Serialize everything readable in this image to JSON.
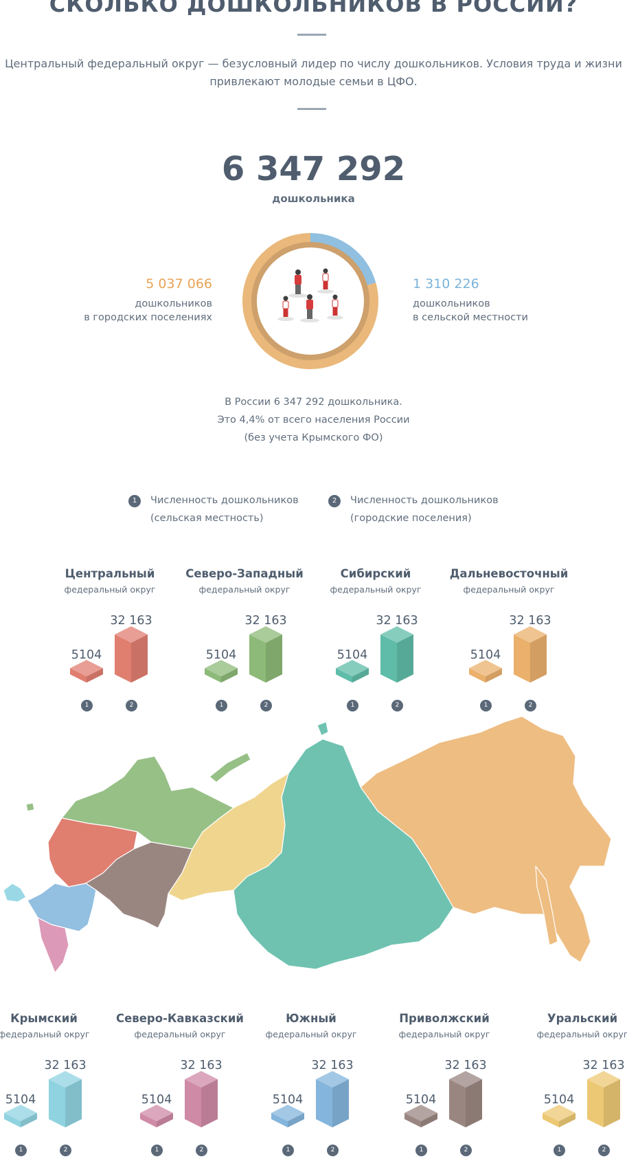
{
  "header": {
    "title": "СКОЛЬКО ДОШКОЛЬНИКОВ В РОССИИ?",
    "subtitle_line1": "Центральный федеральный округ — безусловный лидер по числу дошкольников. Условия труда и жизни",
    "subtitle_line2": "привлекают молодые семьи в ЦФО."
  },
  "summary": {
    "total": "6 347 292",
    "total_label": "дошкольника",
    "urban_value": "5 037 066",
    "urban_label_1": "дошкольников",
    "urban_label_2": "в городских поселениях",
    "rural_value": "1 310 226",
    "rural_label_1": "дошкольников",
    "rural_label_2": "в сельской местности",
    "note_1": "В России 6 347 292 дошкольника.",
    "note_2": "Это 4,4% от всего населения России",
    "note_3": "(без учета Крымского ФО)"
  },
  "legend": [
    {
      "num": "1",
      "line1": "Численность дошкольников",
      "line2": "(сельская местность)"
    },
    {
      "num": "2",
      "line1": "Численность дошкольников",
      "line2": "(городские поселения)"
    }
  ],
  "colors": {
    "urban": "#e9b87a",
    "rural": "#90bfe0",
    "inner_ring": "#cda06c"
  },
  "chart_data": [
    {
      "type": "pie",
      "title": "6 347 292",
      "categories": [
        "в городских поселениях",
        "в сельской местности"
      ],
      "values": [
        5037066,
        1310226
      ]
    },
    {
      "type": "bar",
      "categories": [
        "Центральный",
        "Северо-Западный",
        "Сибирский",
        "Дальневосточный",
        "Крымский",
        "Северо-Кавказский",
        "Южный",
        "Приволжский",
        "Уральский"
      ],
      "series": [
        {
          "name": "Численность дошкольников (сельская местность)",
          "values": [
            5104,
            5104,
            5104,
            5104,
            5104,
            5104,
            5104,
            5104,
            5104
          ]
        },
        {
          "name": "Численность дошкольников (городские поселения)",
          "values": [
            32163,
            32163,
            32163,
            32163,
            32163,
            32163,
            32163,
            32163,
            32163
          ]
        }
      ]
    }
  ],
  "districts_top": [
    {
      "name": "Центральный",
      "sub": "федеральный округ",
      "small": "5104",
      "big": "32 163",
      "b1": "1",
      "b2": "2",
      "color": "#e07e70"
    },
    {
      "name": "Северо-Западный",
      "sub": "федеральный округ",
      "small": "5104",
      "big": "32 163",
      "b1": "1",
      "b2": "2",
      "color": "#8dba78"
    },
    {
      "name": "Сибирский",
      "sub": "федеральный округ",
      "small": "5104",
      "big": "32 163",
      "b1": "1",
      "b2": "2",
      "color": "#5fbca8"
    },
    {
      "name": "Дальневосточный",
      "sub": "федеральный округ",
      "small": "5104",
      "big": "32 163",
      "b1": "1",
      "b2": "2",
      "color": "#eab06c"
    }
  ],
  "districts_bottom": [
    {
      "name": "Крымский",
      "sub": "федеральный округ",
      "small": "5104",
      "big": "32 163",
      "b1": "1",
      "b2": "2",
      "color": "#8fd3e0"
    },
    {
      "name": "Северо-Кавказский",
      "sub": "федеральный округ",
      "small": "5104",
      "big": "32 163",
      "b1": "1",
      "b2": "2",
      "color": "#cf8aa6"
    },
    {
      "name": "Южный",
      "sub": "федеральный округ",
      "small": "5104",
      "big": "32 163",
      "b1": "1",
      "b2": "2",
      "color": "#84b5dc"
    },
    {
      "name": "Приволжский",
      "sub": "федеральный округ",
      "small": "5104",
      "big": "32 163",
      "b1": "1",
      "b2": "2",
      "color": "#9a8681"
    },
    {
      "name": "Уральский",
      "sub": "федеральный округ",
      "small": "5104",
      "big": "32 163",
      "b1": "1",
      "b2": "2",
      "color": "#ecc874"
    }
  ],
  "map_colors": {
    "central": "#e07e70",
    "northwest": "#97c087",
    "volga": "#9a8681",
    "ural": "#efd58e",
    "siberia": "#6fc2b0",
    "fareast": "#eebd82",
    "south": "#93bfe0",
    "ncaucasus": "#dd99b8",
    "crimea": "#9ad8e6"
  }
}
